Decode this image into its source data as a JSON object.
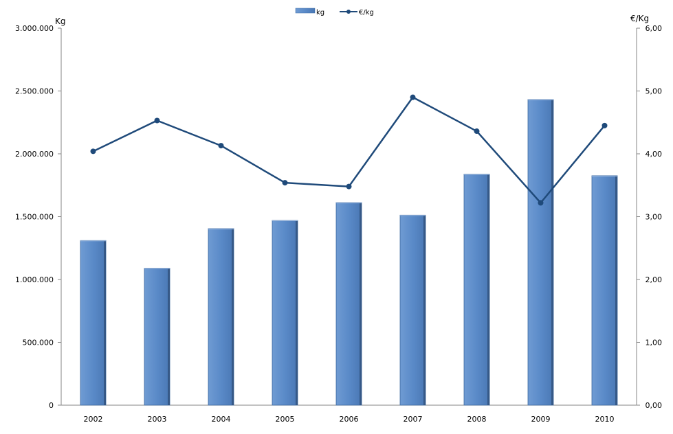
{
  "chart_data": {
    "type": "bar",
    "categories": [
      "2002",
      "2003",
      "2004",
      "2005",
      "2006",
      "2007",
      "2008",
      "2009",
      "2010"
    ],
    "series": [
      {
        "name": "kg",
        "type": "bar",
        "axis": "left",
        "values": [
          1310000,
          1090000,
          1405000,
          1470000,
          1612000,
          1512000,
          1838000,
          2432000,
          1826000
        ],
        "color": "#5b8cc8"
      },
      {
        "name": "€/kg",
        "type": "line",
        "axis": "right",
        "values": [
          4.04,
          4.53,
          4.13,
          3.54,
          3.48,
          4.9,
          4.36,
          3.22,
          4.45
        ],
        "color": "#1f4a7a"
      }
    ],
    "ylabel": "Kg",
    "y2label": "€/Kg",
    "ylim": [
      0,
      3000000
    ],
    "y2lim": [
      0,
      6
    ],
    "yticks": [
      "0",
      "500.000",
      "1.000.000",
      "1.500.000",
      "2.000.000",
      "2.500.000",
      "3.000.000"
    ],
    "y2ticks": [
      "0,00",
      "1,00",
      "2,00",
      "3,00",
      "4,00",
      "5,00",
      "6,00"
    ],
    "legend_position": "top-center",
    "grid": false
  }
}
